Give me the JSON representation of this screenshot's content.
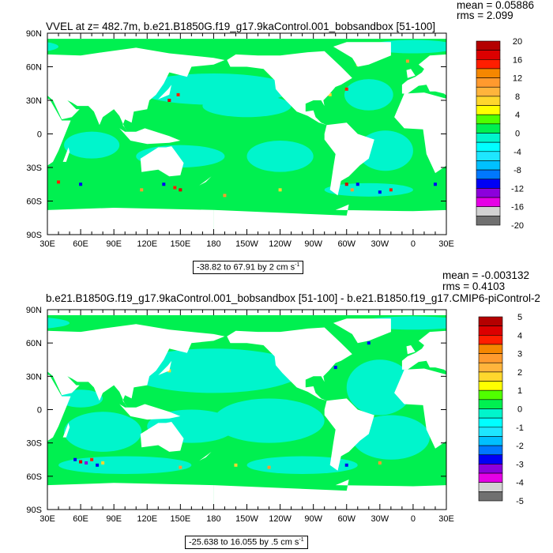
{
  "plots": [
    {
      "title": "VVEL at z= 482.7m, b.e21.B1850G.f19_g17.9kaControl.001_bobsandbox [51-100]",
      "mean": "mean = 0.05886",
      "rms": "rms = 2.099",
      "range_text": "-38.82 to 67.91 by 2 cm s",
      "range_sup": "-1",
      "colorbar_labels": [
        "20",
        "16",
        "12",
        "8",
        "4",
        "0",
        "-4",
        "-8",
        "-12",
        "-16",
        "-20"
      ]
    },
    {
      "title": "b.e21.B1850G.f19_g17.9kaControl.001_bobsandbox [51-100] - b.e21.B1850.f19_g17.CMIP6-piControl-2",
      "mean": "mean = -0.003132",
      "rms": "rms = 0.4103",
      "range_text": "-25.638 to 16.055 by .5 cm s",
      "range_sup": "-1",
      "colorbar_labels": [
        "5",
        "4",
        "3",
        "2",
        "1",
        "0",
        "-1",
        "-2",
        "-3",
        "-4",
        "-5"
      ]
    }
  ],
  "lat_labels": [
    "90N",
    "60N",
    "30N",
    "0",
    "30S",
    "60S",
    "90S"
  ],
  "lon_labels": [
    "30E",
    "60E",
    "90E",
    "120E",
    "150E",
    "180",
    "150W",
    "120W",
    "90W",
    "60W",
    "30W",
    "0",
    "30E"
  ],
  "colors": [
    "#b40000",
    "#dc0000",
    "#ff1e00",
    "#f58700",
    "#ff9a2e",
    "#ffb43c",
    "#ffd72d",
    "#ffff00",
    "#50ff00",
    "#00f050",
    "#00f5cc",
    "#00ffff",
    "#1ee6ff",
    "#00c0ff",
    "#0078ff",
    "#0000f5",
    "#8c00dc",
    "#e600e6",
    "#d2d2d2",
    "#707070"
  ]
}
